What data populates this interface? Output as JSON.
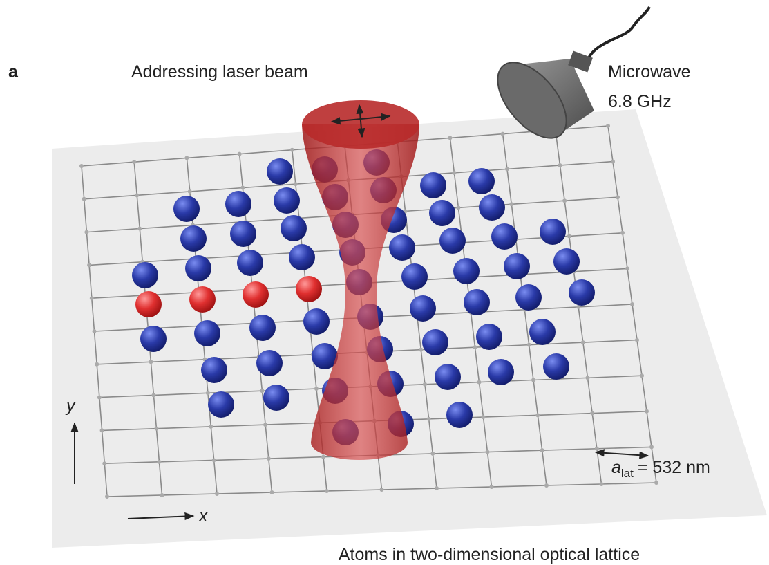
{
  "panel_label": "a",
  "beam_label": "Addressing laser beam",
  "microwave_label": [
    "Microwave",
    "6.8 GHz"
  ],
  "axis_labels": {
    "y": "y",
    "x": "x"
  },
  "lattice_constant": {
    "symbol": "a",
    "subscript": "lat",
    "value_text": "= 532 nm"
  },
  "caption": "Atoms in two-dimensional optical lattice"
}
